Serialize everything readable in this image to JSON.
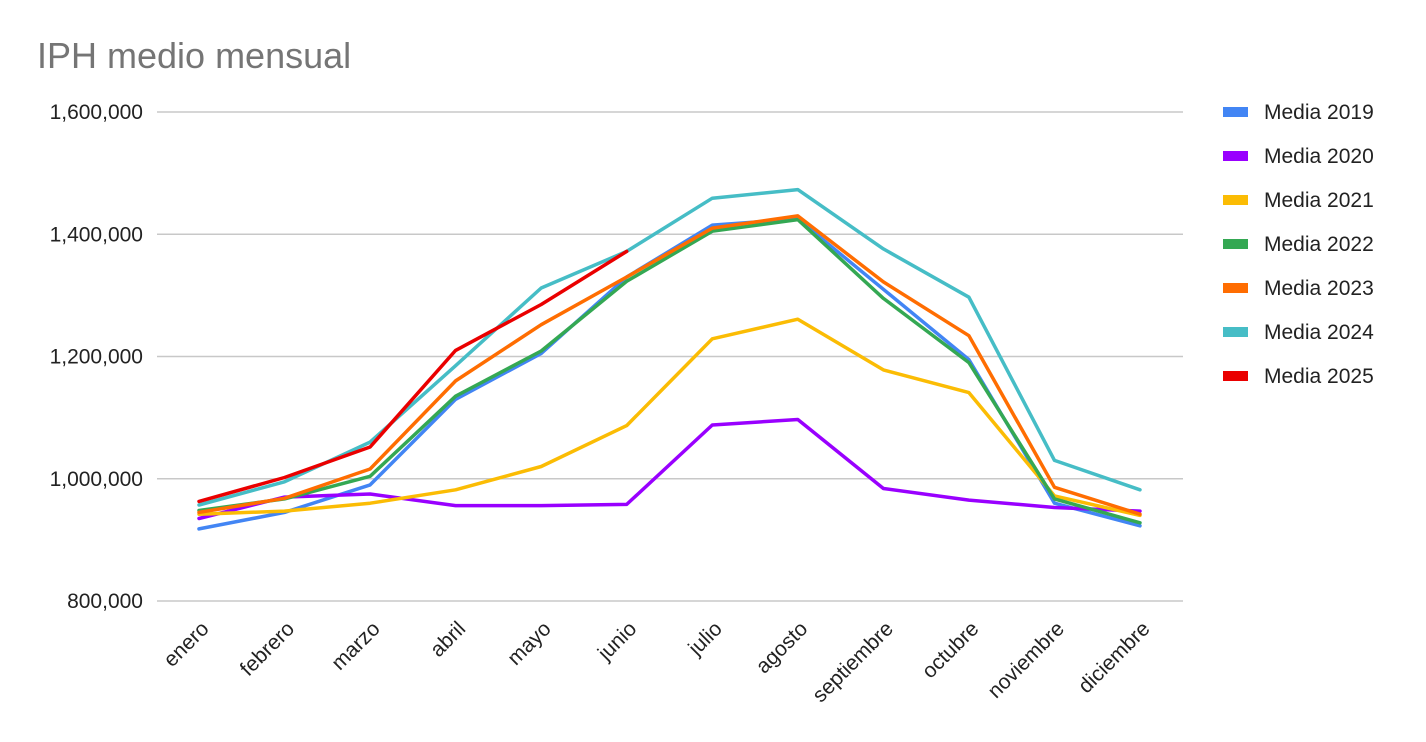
{
  "chart_data": {
    "type": "line",
    "title": "IPH medio mensual",
    "xlabel": "",
    "ylabel": "",
    "ylim": [
      800000,
      1600000
    ],
    "yticks": [
      800000,
      1000000,
      1200000,
      1400000,
      1600000
    ],
    "ytick_labels": [
      "800,000",
      "1,000,000",
      "1,200,000",
      "1,400,000",
      "1,600,000"
    ],
    "grid": true,
    "legend_position": "right",
    "categories": [
      "enero",
      "febrero",
      "marzo",
      "abril",
      "mayo",
      "junio",
      "julio",
      "agosto",
      "septiembre",
      "octubre",
      "noviembre",
      "diciembre"
    ],
    "series": [
      {
        "name": "Media 2019",
        "color": "#4285f4",
        "values": [
          918000,
          945000,
          990000,
          1130000,
          1205000,
          1330000,
          1415000,
          1425000,
          1310000,
          1195000,
          960000,
          923000
        ]
      },
      {
        "name": "Media 2020",
        "color": "#9900ff",
        "values": [
          935000,
          970000,
          975000,
          956000,
          956000,
          958000,
          1088000,
          1097000,
          984000,
          965000,
          953000,
          947000
        ]
      },
      {
        "name": "Media 2021",
        "color": "#fbbc04",
        "values": [
          942000,
          947000,
          960000,
          982000,
          1020000,
          1087000,
          1229000,
          1261000,
          1178000,
          1141000,
          972000,
          940000
        ]
      },
      {
        "name": "Media 2022",
        "color": "#34a853",
        "values": [
          948000,
          967000,
          1004000,
          1135000,
          1209000,
          1323000,
          1405000,
          1424000,
          1295000,
          1190000,
          967000,
          928000
        ]
      },
      {
        "name": "Media 2023",
        "color": "#ff6d01",
        "values": [
          945000,
          968000,
          1016000,
          1160000,
          1252000,
          1330000,
          1410000,
          1430000,
          1322000,
          1234000,
          986000,
          942000
        ]
      },
      {
        "name": "Media 2024",
        "color": "#46bdc6",
        "values": [
          957000,
          995000,
          1060000,
          1185000,
          1312000,
          1372000,
          1459000,
          1473000,
          1376000,
          1297000,
          1030000,
          982000
        ]
      },
      {
        "name": "Media 2025",
        "color": "#ea0000",
        "values": [
          963000,
          1002000,
          1052000,
          1210000,
          1285000,
          1372000,
          null,
          null,
          null,
          null,
          null,
          null
        ]
      }
    ]
  }
}
